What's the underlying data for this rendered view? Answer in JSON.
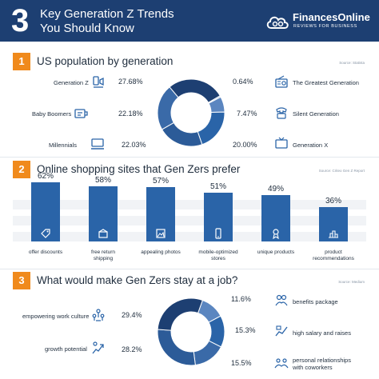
{
  "header": {
    "number": "3",
    "title_line1": "Key Generation Z Trends",
    "title_line2": "You Should Know",
    "logo_name": "FinancesOnline",
    "logo_tagline": "REVIEWS FOR BUSINESS"
  },
  "colors": {
    "header_bg": "#1d3f72",
    "badge": "#f08a1c",
    "bar": "#2a64a8",
    "donut": [
      "#1d3f72",
      "#2a64a8",
      "#2c5b98",
      "#3a6aa8",
      "#5b86c0",
      "#8fb0d8"
    ]
  },
  "section1": {
    "number": "1",
    "title": "US population by generation",
    "source": "Source: Statista",
    "chart_data": {
      "type": "pie",
      "categories": [
        "Generation Z",
        "The Greatest Generation",
        "Silent Generation",
        "Generation X",
        "Millennials",
        "Baby Boomers"
      ],
      "values": [
        27.68,
        0.64,
        7.47,
        20.0,
        22.03,
        22.18
      ],
      "labels": [
        "27.68%",
        "0.64%",
        "7.47%",
        "20.00%",
        "22.03%",
        "22.18%"
      ]
    },
    "left": [
      {
        "label": "Generation Z",
        "value": "27.68%",
        "icon": "gen-z-icon"
      },
      {
        "label": "Baby Boomers",
        "value": "22.18%",
        "icon": "baby-boomers-icon"
      },
      {
        "label": "Millennials",
        "value": "22.03%",
        "icon": "millennials-icon"
      }
    ],
    "right": [
      {
        "label": "The Greatest Generation",
        "value": "0.64%",
        "icon": "radio-icon"
      },
      {
        "label": "Silent Generation",
        "value": "7.47%",
        "icon": "phone-icon"
      },
      {
        "label": "Generation X",
        "value": "20.00%",
        "icon": "tv-icon"
      }
    ]
  },
  "section2": {
    "number": "2",
    "title": "Online shopping sites that Gen Zers prefer",
    "source": "Source: Criteo Gen Z Report",
    "chart_data": {
      "type": "bar",
      "categories": [
        "offer discounts",
        "free return shipping",
        "appealing photos",
        "mobile-optimized stores",
        "unique products",
        "product recommendations"
      ],
      "values": [
        62,
        58,
        57,
        51,
        49,
        36
      ],
      "ylim": [
        0,
        100
      ]
    },
    "bars": [
      {
        "value": "62%",
        "line1": "offer discounts",
        "line2": "",
        "icon": "tag-icon"
      },
      {
        "value": "58%",
        "line1": "free return",
        "line2": "shipping",
        "icon": "box-icon"
      },
      {
        "value": "57%",
        "line1": "appealing photos",
        "line2": "",
        "icon": "photo-icon"
      },
      {
        "value": "51%",
        "line1": "mobile-optimized",
        "line2": "stores",
        "icon": "mobile-icon"
      },
      {
        "value": "49%",
        "line1": "unique products",
        "line2": "",
        "icon": "award-icon"
      },
      {
        "value": "36%",
        "line1": "product",
        "line2": "recommendations",
        "icon": "podium-icon"
      }
    ]
  },
  "section3": {
    "number": "3",
    "title": "What would make Gen Zers stay at a job?",
    "source": "Source: Medium",
    "chart_data": {
      "type": "pie",
      "categories": [
        "benefits package",
        "high salary and raises",
        "personal relationships with coworkers",
        "growth potential",
        "empowering work culture"
      ],
      "values": [
        11.6,
        15.3,
        15.5,
        28.2,
        29.4
      ],
      "labels": [
        "11.6%",
        "15.3%",
        "15.5%",
        "28.2%",
        "29.4%"
      ]
    },
    "left": [
      {
        "label": "empowering work culture",
        "value": "29.4%",
        "icon": "culture-icon"
      },
      {
        "label": "growth potential",
        "value": "28.2%",
        "icon": "growth-icon"
      }
    ],
    "right": [
      {
        "label": "benefits package",
        "line2": "",
        "value": "11.6%",
        "icon": "benefits-icon"
      },
      {
        "label": "high salary and raises",
        "line2": "",
        "value": "15.3%",
        "icon": "salary-icon"
      },
      {
        "label": "personal relationships",
        "line2": "with coworkers",
        "value": "15.5%",
        "icon": "relationships-icon"
      }
    ]
  }
}
